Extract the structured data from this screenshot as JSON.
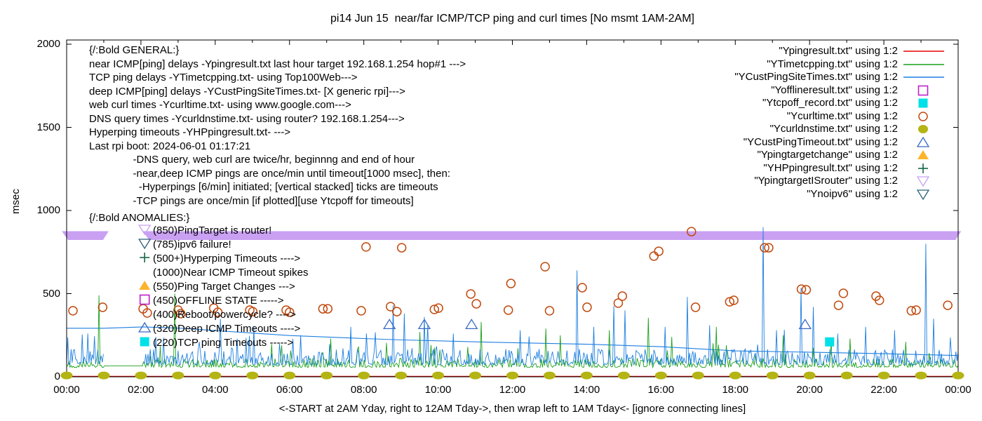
{
  "title": "pi14 Jun 15  near/far ICMP/TCP ping and curl times [No msmt 1AM-2AM]",
  "ylabel": "msec",
  "xlabel": "<-START at 2AM Yday, right to 12AM Tday->, then wrap left to 1AM Tday<- [ignore connecting lines]",
  "colors": {
    "red": "#e60000",
    "green": "#1aa01a",
    "blue": "#1e7fe0",
    "magenta": "#bf20cc",
    "cyan": "#00e0e8",
    "orange_circle": "#c04a0e",
    "olive": "#b4b414",
    "triangle_blue": "#3868c4",
    "triangle_orange": "#fdb42c",
    "plus_green": "#176645",
    "violet": "#c9a0f2",
    "slate": "#2e6078",
    "axis": "#000000"
  },
  "general_block": {
    "lines": [
      "{/:Bold GENERAL:}",
      "near ICMP[ping] delays -Ypingresult.txt last hour target 192.168.1.254 hop#1 --->",
      "TCP ping delays -YTimetcpping.txt- using Top100Web--->",
      "deep ICMP[ping] delays -YCustPingSiteTimes.txt- [X generic rpi]--->",
      "web curl times -Ycurltime.txt- using www.google.com--->",
      "DNS query times -Ycurldnstime.txt- using router? 192.168.1.254--->",
      "Hyperping timeouts -YHPpingresult.txt- --->",
      "Last rpi boot: 2024-06-01 01:17:21",
      "               -DNS query, web curl are twice/hr, beginnng and end of hour",
      "               -near,deep ICMP pings are once/min until timeout[1000 msec], then:",
      "                 -Hyperpings [6/min] initiated; [vertical stacked] ticks are timeouts",
      "               -TCP pings are once/min [if plotted][use Ytcpoff for timeouts]"
    ]
  },
  "anomalies_block": {
    "heading": "{/:Bold ANOMALIES:}",
    "items": [
      {
        "label": "(850)PingTarget is router!",
        "marker": "triangle-down-open",
        "color_key": "violet"
      },
      {
        "label": "(785)ipv6 failure!",
        "marker": "triangle-down-open",
        "color_key": "slate"
      },
      {
        "label": "(500+)Hyperping Timeouts ---->",
        "marker": "plus",
        "color_key": "plus_green"
      },
      {
        "label": "(1000)Near ICMP Timeout spikes",
        "marker": null,
        "color_key": null
      },
      {
        "label": "(550)Ping Target Changes --->",
        "marker": "triangle-up-filled",
        "color_key": "triangle_orange"
      },
      {
        "label": "(450)OFFLINE STATE ----->",
        "marker": "square-open",
        "color_key": "magenta"
      },
      {
        "label": "(400)Reboot/powercycle? ---->",
        "marker": null,
        "color_key": null
      },
      {
        "label": "(320)Deep ICMP Timeouts ---->",
        "marker": "triangle-up-open",
        "color_key": "triangle_blue"
      },
      {
        "label": "(220)TCP ping Timeouts ----->",
        "marker": "square-filled",
        "color_key": "cyan"
      }
    ]
  },
  "legend": {
    "items": [
      {
        "label": "\"Ypingresult.txt\" using 1:2",
        "marker": "line",
        "color_key": "red"
      },
      {
        "label": "\"YTimetcpping.txt\" using 1:2",
        "marker": "line",
        "color_key": "green"
      },
      {
        "label": "\"YCustPingSiteTimes.txt\" using 1:2",
        "marker": "line",
        "color_key": "blue"
      },
      {
        "label": "\"Yofflineresult.txt\" using 1:2",
        "marker": "square-open",
        "color_key": "magenta"
      },
      {
        "label": "\"Ytcpoff_record.txt\" using 1:2",
        "marker": "square-filled",
        "color_key": "cyan"
      },
      {
        "label": "\"Ycurltime.txt\" using 1:2",
        "marker": "circle-open",
        "color_key": "orange_circle"
      },
      {
        "label": "\"Ycurldnstime.txt\" using 1:2",
        "marker": "circle-filled",
        "color_key": "olive"
      },
      {
        "label": "\"YCustPingTimeout.txt\" using 1:2",
        "marker": "triangle-up-open",
        "color_key": "triangle_blue"
      },
      {
        "label": "\"Ypingtargetchange\" using 1:2",
        "marker": "triangle-up-filled",
        "color_key": "triangle_orange"
      },
      {
        "label": "\"YHPpingresult.txt\" using 1:2",
        "marker": "plus",
        "color_key": "plus_green"
      },
      {
        "label": "\"YpingtargetISrouter\" using 1:2",
        "marker": "triangle-down-open",
        "color_key": "violet"
      },
      {
        "label": "\"Ynoipv6\" using 1:2",
        "marker": "triangle-down-open",
        "color_key": "slate"
      }
    ]
  },
  "chart_data": {
    "type": "line",
    "title": "pi14 Jun 15  near/far ICMP/TCP ping and curl times [No msmt 1AM-2AM]",
    "xlabel": "<-START at 2AM Yday, right to 12AM Tday->, then wrap left to 1AM Tday<- [ignore connecting lines]",
    "ylabel": "msec",
    "xlim_hours": [
      0,
      24
    ],
    "ylim": [
      0,
      2000
    ],
    "grid": false,
    "legend_position": "top-right-inside",
    "x_tick_labels": [
      "00:00",
      "02:00",
      "04:00",
      "06:00",
      "08:00",
      "10:00",
      "12:00",
      "14:00",
      "16:00",
      "18:00",
      "20:00",
      "22:00",
      "00:00"
    ],
    "x_tick_hours": [
      0,
      2,
      4,
      6,
      8,
      10,
      12,
      14,
      16,
      18,
      20,
      22,
      24
    ],
    "x_minor_tick_hours": [
      1,
      3,
      5,
      7,
      9,
      11,
      13,
      15,
      17,
      19,
      21,
      23
    ],
    "y_tick_labels": [
      "0",
      "500",
      "1000",
      "1500",
      "2000"
    ],
    "y_tick_values": [
      0,
      500,
      1000,
      1500,
      2000
    ],
    "no_measurement_gap_hours": [
      1.0,
      2.06
    ],
    "series": [
      {
        "name": "Ypingresult.txt",
        "kind": "flat-line",
        "color_key": "red",
        "value_msec": 3
      },
      {
        "name": "YTimetcpping.txt",
        "kind": "noisy-line",
        "color_key": "green",
        "seed": 77,
        "base": 57,
        "amp": 55,
        "pow": 2.5,
        "spike_prob": 0.04,
        "spike_amp": 110,
        "spike_min": 40,
        "gap_flat_value": 66,
        "spikes": [
          [
            0.87,
            490
          ],
          [
            2.9,
            500
          ],
          [
            7.1,
            230
          ],
          [
            9.5,
            270
          ],
          [
            11.15,
            330
          ],
          [
            12.9,
            290
          ],
          [
            13.3,
            250
          ],
          [
            14.6,
            280
          ],
          [
            15.65,
            355
          ],
          [
            16.3,
            240
          ],
          [
            17.5,
            300
          ],
          [
            19.3,
            250
          ],
          [
            21.1,
            230
          ],
          [
            22.6,
            210
          ]
        ]
      },
      {
        "name": "YCustPingSiteTimes.txt",
        "kind": "noisy-line",
        "color_key": "blue",
        "seed": 1234,
        "base": 72,
        "amp": 95,
        "pow": 2.2,
        "spike_prob": 0.055,
        "spike_amp": 130,
        "spike_min": 60,
        "gap_flat_value": null,
        "spikes": [
          [
            0.42,
            255
          ],
          [
            0.56,
            260
          ],
          [
            2.4,
            240
          ],
          [
            2.62,
            235
          ],
          [
            4.6,
            230
          ],
          [
            6.3,
            250
          ],
          [
            7.65,
            300
          ],
          [
            8.78,
            430
          ],
          [
            9.1,
            380
          ],
          [
            9.62,
            360
          ],
          [
            10.4,
            260
          ],
          [
            12.2,
            280
          ],
          [
            13.74,
            640
          ],
          [
            14.2,
            300
          ],
          [
            14.72,
            425
          ],
          [
            15.02,
            400
          ],
          [
            16.1,
            300
          ],
          [
            16.7,
            480
          ],
          [
            17.3,
            310
          ],
          [
            18.76,
            900
          ],
          [
            19.1,
            280
          ],
          [
            19.78,
            535
          ],
          [
            20.1,
            420
          ],
          [
            21.5,
            300
          ],
          [
            22.3,
            280
          ],
          [
            23.12,
            800
          ],
          [
            23.35,
            350
          ]
        ],
        "trend_keypoints": [
          [
            0,
            292
          ],
          [
            1.0,
            292
          ],
          [
            2.06,
            300
          ],
          [
            3,
            293
          ],
          [
            6,
            248
          ],
          [
            8,
            230
          ],
          [
            9,
            222
          ],
          [
            11.6,
            207
          ],
          [
            14,
            196
          ],
          [
            16,
            181
          ],
          [
            18,
            156
          ],
          [
            20,
            148
          ],
          [
            22,
            139
          ],
          [
            24,
            128
          ]
        ]
      },
      {
        "name": "Yofflineresult.txt",
        "kind": "scatter",
        "marker": "square-open",
        "color_key": "magenta",
        "points": []
      },
      {
        "name": "Ytcpoff_record.txt",
        "kind": "scatter",
        "marker": "square-filled",
        "color_key": "cyan",
        "points": [
          [
            20.54,
            210
          ]
        ]
      },
      {
        "name": "Ycurltime.txt",
        "kind": "scatter",
        "marker": "circle-open",
        "color_key": "orange_circle",
        "points": [
          [
            0.17,
            397
          ],
          [
            0.97,
            418
          ],
          [
            2.06,
            409
          ],
          [
            2.17,
            384
          ],
          [
            3.0,
            401
          ],
          [
            3.07,
            380
          ],
          [
            3.96,
            413
          ],
          [
            4.07,
            388
          ],
          [
            4.93,
            401
          ],
          [
            5.01,
            392
          ],
          [
            5.91,
            401
          ],
          [
            6.0,
            388
          ],
          [
            6.9,
            409
          ],
          [
            7.03,
            409
          ],
          [
            7.93,
            397
          ],
          [
            8.06,
            781
          ],
          [
            8.72,
            422
          ],
          [
            8.89,
            392
          ],
          [
            9.02,
            776
          ],
          [
            9.9,
            405
          ],
          [
            10.01,
            413
          ],
          [
            10.88,
            498
          ],
          [
            11.03,
            439
          ],
          [
            11.89,
            401
          ],
          [
            11.96,
            561
          ],
          [
            12.88,
            662
          ],
          [
            13.0,
            397
          ],
          [
            13.88,
            536
          ],
          [
            14.01,
            418
          ],
          [
            14.85,
            443
          ],
          [
            14.96,
            485
          ],
          [
            15.81,
            726
          ],
          [
            15.94,
            755
          ],
          [
            16.82,
            873
          ],
          [
            16.93,
            418
          ],
          [
            17.85,
            451
          ],
          [
            17.96,
            460
          ],
          [
            18.79,
            776
          ],
          [
            18.9,
            776
          ],
          [
            19.78,
            527
          ],
          [
            19.91,
            523
          ],
          [
            20.78,
            430
          ],
          [
            20.91,
            502
          ],
          [
            21.79,
            485
          ],
          [
            21.88,
            460
          ],
          [
            22.74,
            397
          ],
          [
            22.87,
            401
          ],
          [
            23.72,
            430
          ]
        ]
      },
      {
        "name": "Ycurldnstime.txt",
        "kind": "scatter",
        "marker": "circle-filled",
        "color_key": "olive",
        "points": [
          [
            0,
            8
          ],
          [
            1,
            8
          ],
          [
            2,
            8
          ],
          [
            3,
            8
          ],
          [
            4,
            8
          ],
          [
            5,
            8
          ],
          [
            6,
            8
          ],
          [
            7,
            8
          ],
          [
            8,
            8
          ],
          [
            9,
            8
          ],
          [
            10,
            8
          ],
          [
            11,
            8
          ],
          [
            12,
            8
          ],
          [
            13,
            8
          ],
          [
            14,
            8
          ],
          [
            15,
            8
          ],
          [
            16,
            8
          ],
          [
            17,
            8
          ],
          [
            18,
            8
          ],
          [
            19,
            8
          ],
          [
            20,
            8
          ],
          [
            21,
            8
          ],
          [
            22,
            8
          ],
          [
            23,
            8
          ],
          [
            24,
            8
          ]
        ]
      },
      {
        "name": "YCustPingTimeout.txt",
        "kind": "scatter",
        "marker": "triangle-up-open",
        "color_key": "triangle_blue",
        "points": [
          [
            8.69,
            315
          ],
          [
            9.63,
            315
          ],
          [
            10.9,
            315
          ],
          [
            19.88,
            315
          ]
        ]
      },
      {
        "name": "Ypingtargetchange",
        "kind": "scatter",
        "marker": "triangle-up-filled",
        "color_key": "triangle_orange",
        "points": []
      },
      {
        "name": "YHPpingresult.txt",
        "kind": "scatter",
        "marker": "plus",
        "color_key": "plus_green",
        "points": []
      },
      {
        "name": "YpingtargetISrouter",
        "kind": "band",
        "marker": "triangle-down-open",
        "color_key": "violet",
        "value_msec": 850,
        "segments_hours": [
          [
            -0.13,
            1.13
          ],
          [
            2.05,
            24.08
          ]
        ]
      },
      {
        "name": "Ynoipv6",
        "kind": "scatter",
        "marker": "triangle-down-open",
        "color_key": "slate",
        "points": []
      }
    ],
    "anomaly_marker_column_hour": 2.1
  }
}
